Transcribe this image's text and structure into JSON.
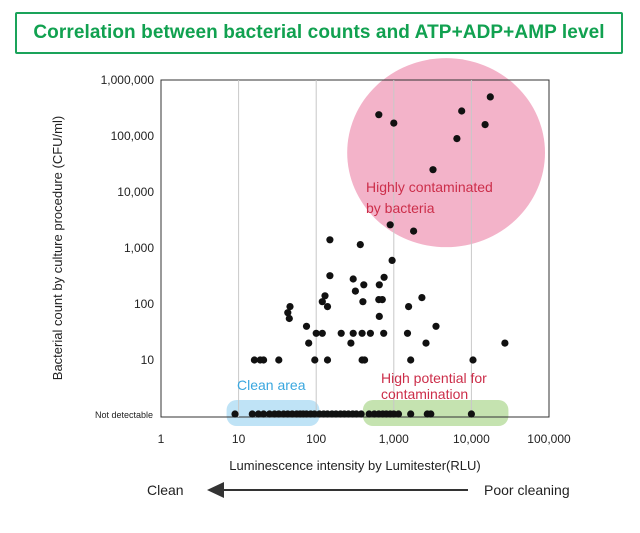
{
  "title": "Correlation between bacterial counts and ATP+ADP+AMP level",
  "chart_data": {
    "type": "scatter",
    "xlabel": "Luminescence intensity by Lumitester(RLU)",
    "ylabel": "Bacterial count by culture procedure (CFU/ml)",
    "x_scale": "log",
    "y_scale": "log",
    "xlim": [
      1,
      100000
    ],
    "ylim": [
      1,
      1000000
    ],
    "x_ticks": [
      1,
      10,
      100,
      1000,
      10000,
      100000
    ],
    "x_tick_labels": [
      "1",
      "10",
      "100",
      "1,000",
      "10,000",
      "100,000"
    ],
    "y_ticks": [
      10,
      100,
      1000,
      10000,
      100000,
      1000000
    ],
    "y_tick_labels": [
      "10",
      "100",
      "1,000",
      "10,000",
      "100,000",
      "1,000,000"
    ],
    "not_detectable_label": "Not detectable",
    "grid": "vertical lines at x decades",
    "annotations": [
      {
        "text": "Highly contaminated",
        "color": "#cc2e4a"
      },
      {
        "text": "by bacteria",
        "color": "#cc2e4a"
      },
      {
        "text": "Clean area",
        "color": "#3aa7df"
      },
      {
        "text": "High potential for",
        "color": "#cc2e4a"
      },
      {
        "text": "contamination",
        "color": "#cc2e4a"
      }
    ],
    "regions": [
      {
        "name": "highly-contaminated",
        "color": "#f3b3c9",
        "x": [
          380,
          100000
        ],
        "y": [
          2000,
          1500000
        ]
      },
      {
        "name": "clean-area",
        "color": "#bfe3f6",
        "x": [
          7,
          110
        ],
        "y": "not detectable"
      },
      {
        "name": "high-potential",
        "color": "#c5e3b0",
        "x": [
          400,
          30000
        ],
        "y": "not detectable"
      }
    ],
    "points": [
      {
        "x": 640,
        "y": 240000
      },
      {
        "x": 1000,
        "y": 170000
      },
      {
        "x": 7500,
        "y": 280000
      },
      {
        "x": 15000,
        "y": 160000
      },
      {
        "x": 17500,
        "y": 500000
      },
      {
        "x": 6500,
        "y": 90000
      },
      {
        "x": 3200,
        "y": 25000
      },
      {
        "x": 900,
        "y": 2600
      },
      {
        "x": 1800,
        "y": 2000
      },
      {
        "x": 150,
        "y": 1400
      },
      {
        "x": 370,
        "y": 1150
      },
      {
        "x": 950,
        "y": 600
      },
      {
        "x": 300,
        "y": 280
      },
      {
        "x": 750,
        "y": 300
      },
      {
        "x": 650,
        "y": 220
      },
      {
        "x": 150,
        "y": 320
      },
      {
        "x": 320,
        "y": 170
      },
      {
        "x": 410,
        "y": 220
      },
      {
        "x": 130,
        "y": 140
      },
      {
        "x": 120,
        "y": 110
      },
      {
        "x": 400,
        "y": 110
      },
      {
        "x": 640,
        "y": 120
      },
      {
        "x": 710,
        "y": 120
      },
      {
        "x": 2300,
        "y": 130
      },
      {
        "x": 46,
        "y": 90
      },
      {
        "x": 43,
        "y": 70
      },
      {
        "x": 45,
        "y": 55
      },
      {
        "x": 140,
        "y": 90
      },
      {
        "x": 75,
        "y": 40
      },
      {
        "x": 100,
        "y": 30
      },
      {
        "x": 120,
        "y": 30
      },
      {
        "x": 210,
        "y": 30
      },
      {
        "x": 300,
        "y": 30
      },
      {
        "x": 390,
        "y": 30
      },
      {
        "x": 500,
        "y": 30
      },
      {
        "x": 740,
        "y": 30
      },
      {
        "x": 1500,
        "y": 30
      },
      {
        "x": 3500,
        "y": 40
      },
      {
        "x": 280,
        "y": 20
      },
      {
        "x": 80,
        "y": 20
      },
      {
        "x": 650,
        "y": 60
      },
      {
        "x": 1550,
        "y": 90
      },
      {
        "x": 2600,
        "y": 20
      },
      {
        "x": 16,
        "y": 10
      },
      {
        "x": 19,
        "y": 10
      },
      {
        "x": 21,
        "y": 10
      },
      {
        "x": 33,
        "y": 10
      },
      {
        "x": 96,
        "y": 10
      },
      {
        "x": 140,
        "y": 10
      },
      {
        "x": 390,
        "y": 10
      },
      {
        "x": 420,
        "y": 10
      },
      {
        "x": 1650,
        "y": 10
      },
      {
        "x": 10500,
        "y": 10
      },
      {
        "x": 27000,
        "y": 20
      },
      {
        "x": 9,
        "y": "not detectable"
      },
      {
        "x": 15,
        "y": "not detectable"
      },
      {
        "x": 18,
        "y": "not detectable"
      },
      {
        "x": 21,
        "y": "not detectable"
      },
      {
        "x": 25,
        "y": "not detectable"
      },
      {
        "x": 29,
        "y": "not detectable"
      },
      {
        "x": 33,
        "y": "not detectable"
      },
      {
        "x": 38,
        "y": "not detectable"
      },
      {
        "x": 43,
        "y": "not detectable"
      },
      {
        "x": 49,
        "y": "not detectable"
      },
      {
        "x": 56,
        "y": "not detectable"
      },
      {
        "x": 62,
        "y": "not detectable"
      },
      {
        "x": 68,
        "y": "not detectable"
      },
      {
        "x": 75,
        "y": "not detectable"
      },
      {
        "x": 85,
        "y": "not detectable"
      },
      {
        "x": 95,
        "y": "not detectable"
      },
      {
        "x": 110,
        "y": "not detectable"
      },
      {
        "x": 125,
        "y": "not detectable"
      },
      {
        "x": 140,
        "y": "not detectable"
      },
      {
        "x": 160,
        "y": "not detectable"
      },
      {
        "x": 180,
        "y": "not detectable"
      },
      {
        "x": 205,
        "y": "not detectable"
      },
      {
        "x": 230,
        "y": "not detectable"
      },
      {
        "x": 260,
        "y": "not detectable"
      },
      {
        "x": 295,
        "y": "not detectable"
      },
      {
        "x": 330,
        "y": "not detectable"
      },
      {
        "x": 380,
        "y": "not detectable"
      },
      {
        "x": 480,
        "y": "not detectable"
      },
      {
        "x": 560,
        "y": "not detectable"
      },
      {
        "x": 640,
        "y": "not detectable"
      },
      {
        "x": 720,
        "y": "not detectable"
      },
      {
        "x": 800,
        "y": "not detectable"
      },
      {
        "x": 900,
        "y": "not detectable"
      },
      {
        "x": 1000,
        "y": "not detectable"
      },
      {
        "x": 1150,
        "y": "not detectable"
      },
      {
        "x": 1650,
        "y": "not detectable"
      },
      {
        "x": 2700,
        "y": "not detectable"
      },
      {
        "x": 3000,
        "y": "not detectable"
      },
      {
        "x": 10000,
        "y": "not detectable"
      }
    ]
  },
  "direction": {
    "left_label": "Clean",
    "right_label": "Poor cleaning"
  }
}
